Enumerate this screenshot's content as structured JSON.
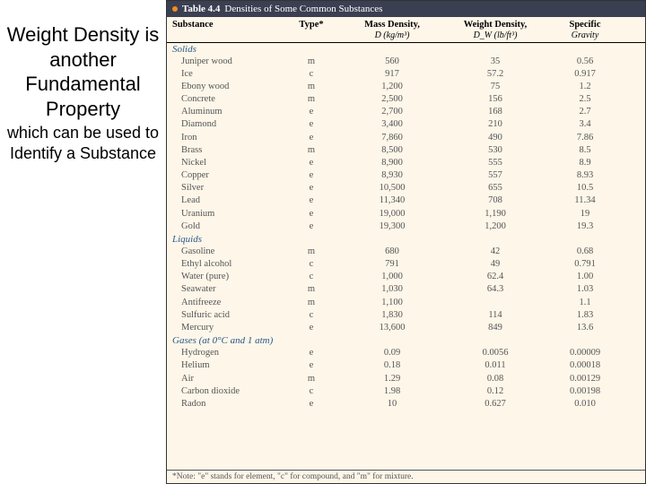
{
  "left": {
    "line1": "Weight Density is another",
    "line2": "Fundamental Property",
    "line3": "which can be used to Identify a Substance"
  },
  "table": {
    "bullet_color": "#f28c1f",
    "label": "Table  4.4",
    "title": "Densities of Some Common Substances",
    "columns": {
      "substance": "Substance",
      "type": "Type*",
      "mass_density_top": "Mass Density,",
      "mass_density_sub": "D (kg/m³)",
      "weight_density_top": "Weight Density,",
      "weight_density_sub": "D_W (lb/ft³)",
      "specific_top": "Specific",
      "specific_sub": "Gravity"
    },
    "sections": [
      {
        "label": "Solids",
        "rows": [
          {
            "s": "Juniper wood",
            "t": "m",
            "d": "560",
            "w": "35",
            "g": "0.56"
          },
          {
            "s": "Ice",
            "t": "c",
            "d": "917",
            "w": "57.2",
            "g": "0.917"
          },
          {
            "s": "Ebony wood",
            "t": "m",
            "d": "1,200",
            "w": "75",
            "g": "1.2"
          },
          {
            "s": "Concrete",
            "t": "m",
            "d": "2,500",
            "w": "156",
            "g": "2.5"
          },
          {
            "s": "Aluminum",
            "t": "e",
            "d": "2,700",
            "w": "168",
            "g": "2.7"
          },
          {
            "s": "Diamond",
            "t": "e",
            "d": "3,400",
            "w": "210",
            "g": "3.4"
          },
          {
            "s": "Iron",
            "t": "e",
            "d": "7,860",
            "w": "490",
            "g": "7.86"
          },
          {
            "s": "Brass",
            "t": "m",
            "d": "8,500",
            "w": "530",
            "g": "8.5"
          },
          {
            "s": "Nickel",
            "t": "e",
            "d": "8,900",
            "w": "555",
            "g": "8.9"
          },
          {
            "s": "Copper",
            "t": "e",
            "d": "8,930",
            "w": "557",
            "g": "8.93"
          },
          {
            "s": "Silver",
            "t": "e",
            "d": "10,500",
            "w": "655",
            "g": "10.5"
          },
          {
            "s": "Lead",
            "t": "e",
            "d": "11,340",
            "w": "708",
            "g": "11.34"
          },
          {
            "s": "Uranium",
            "t": "e",
            "d": "19,000",
            "w": "1,190",
            "g": "19"
          },
          {
            "s": "Gold",
            "t": "e",
            "d": "19,300",
            "w": "1,200",
            "g": "19.3"
          }
        ]
      },
      {
        "label": "Liquids",
        "rows": [
          {
            "s": "Gasoline",
            "t": "m",
            "d": "680",
            "w": "42",
            "g": "0.68"
          },
          {
            "s": "Ethyl alcohol",
            "t": "c",
            "d": "791",
            "w": "49",
            "g": "0.791"
          },
          {
            "s": "Water (pure)",
            "t": "c",
            "d": "1,000",
            "w": "62.4",
            "g": "1.00"
          },
          {
            "s": "Seawater",
            "t": "m",
            "d": "1,030",
            "w": "64.3",
            "g": "1.03"
          },
          {
            "s": "Antifreeze",
            "t": "m",
            "d": "1,100",
            "w": "",
            "g": "1.1"
          },
          {
            "s": "Sulfuric acid",
            "t": "c",
            "d": "1,830",
            "w": "114",
            "g": "1.83"
          },
          {
            "s": "Mercury",
            "t": "e",
            "d": "13,600",
            "w": "849",
            "g": "13.6"
          }
        ]
      },
      {
        "label": "Gases (at 0°C and 1 atm)",
        "rows": [
          {
            "s": "Hydrogen",
            "t": "e",
            "d": "0.09",
            "w": "0.0056",
            "g": "0.00009"
          },
          {
            "s": "Helium",
            "t": "e",
            "d": "0.18",
            "w": "0.011",
            "g": "0.00018"
          },
          {
            "s": "Air",
            "t": "m",
            "d": "1.29",
            "w": "0.08",
            "g": "0.00129"
          },
          {
            "s": "Carbon dioxide",
            "t": "c",
            "d": "1.98",
            "w": "0.12",
            "g": "0.00198"
          },
          {
            "s": "Radon",
            "t": "e",
            "d": "10",
            "w": "0.627",
            "g": "0.010"
          }
        ]
      }
    ],
    "footnote": "*Note: \"e\" stands for element, \"c\" for compound, and \"m\" for mixture."
  }
}
